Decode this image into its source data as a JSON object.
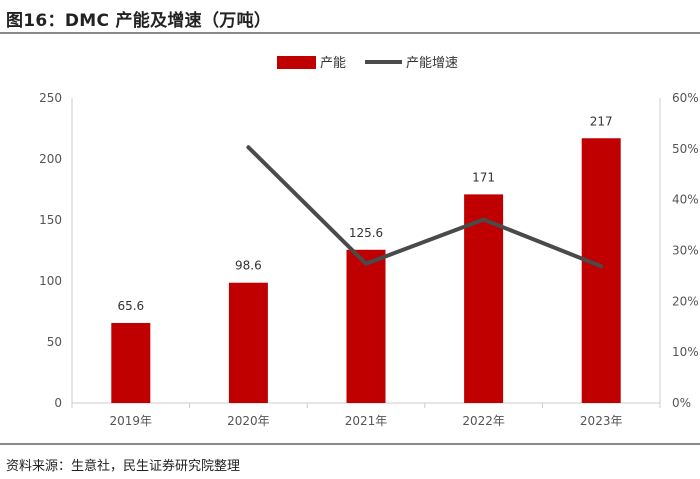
{
  "title": "图16：DMC 产能及增速（万吨）",
  "source": "资料来源：生意社，民生证券研究院整理",
  "colors": {
    "bar": "#c00000",
    "line": "#4a4a4a",
    "axis": "#cccccc"
  },
  "chart_data": {
    "type": "bar+line",
    "categories": [
      "2019年",
      "2020年",
      "2021年",
      "2022年",
      "2023年"
    ],
    "series": [
      {
        "name": "产能",
        "type": "bar",
        "axis": "left",
        "values": [
          65.6,
          98.6,
          125.6,
          171,
          217
        ],
        "labels": [
          "65.6",
          "98.6",
          "125.6",
          "171",
          "217"
        ]
      },
      {
        "name": "产能增速",
        "type": "line",
        "axis": "right",
        "values": [
          null,
          50.3,
          27.4,
          36.1,
          26.9
        ]
      }
    ],
    "y_left": {
      "min": 0,
      "max": 250,
      "ticks": [
        "0",
        "50",
        "100",
        "150",
        "200",
        "250"
      ]
    },
    "y_right": {
      "min": 0,
      "max": 60,
      "ticks": [
        "0%",
        "10%",
        "20%",
        "30%",
        "40%",
        "50%",
        "60%"
      ]
    },
    "legend": "top-center",
    "grid": false
  }
}
